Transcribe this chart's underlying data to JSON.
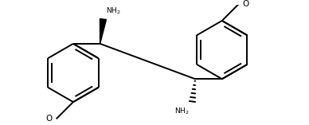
{
  "background_color": "#ffffff",
  "line_color": "#000000",
  "line_width": 1.4,
  "fig_width": 3.88,
  "fig_height": 1.57,
  "dpi": 100,
  "xlim": [
    0.0,
    3.88
  ],
  "ylim": [
    0.0,
    1.57
  ]
}
